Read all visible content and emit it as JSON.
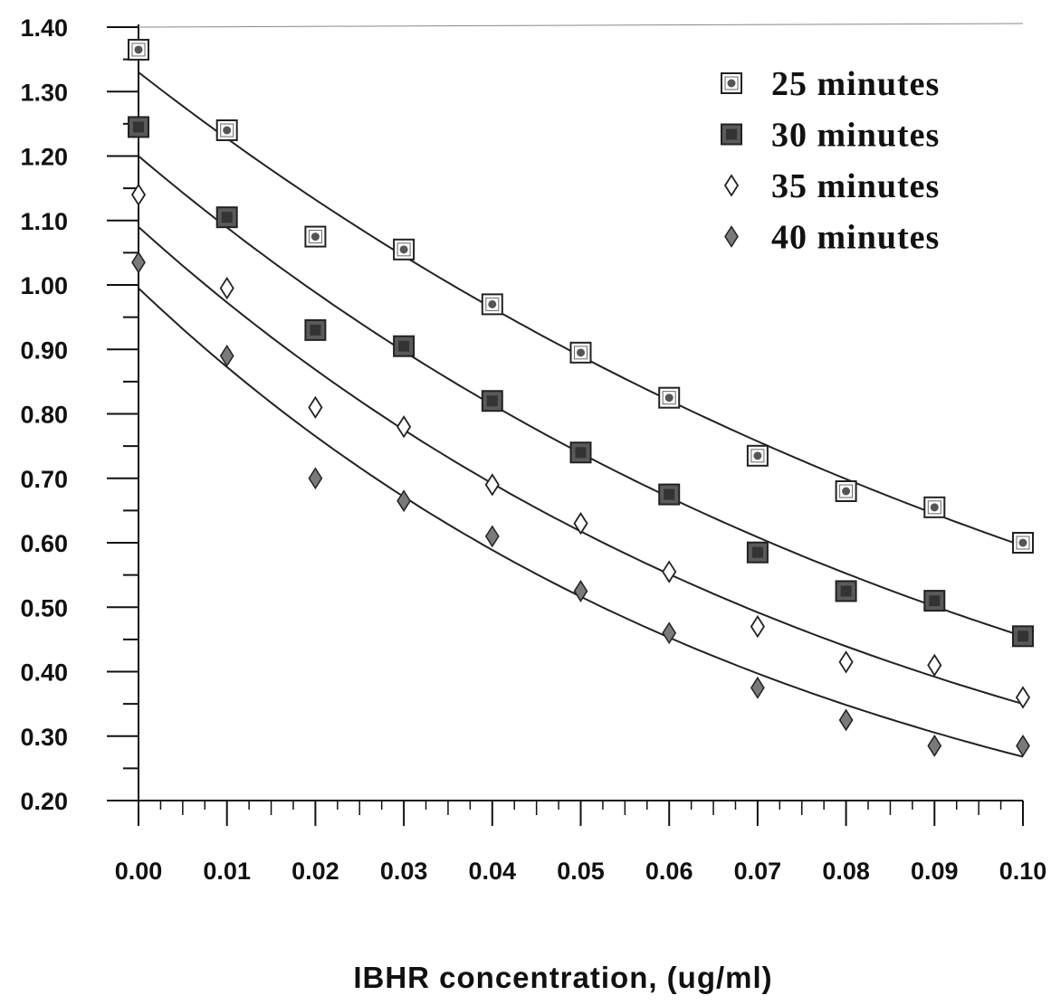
{
  "chart_data": {
    "type": "scatter",
    "title": "",
    "xlabel": "IBHR concentration, (ug/ml)",
    "ylabel": "",
    "xlim": [
      0,
      0.1
    ],
    "ylim": [
      0.2,
      1.4
    ],
    "grid": false,
    "legend_position": "top-right",
    "x_tick_labels": [
      "0.00",
      "0.01",
      "0.02",
      "0.03",
      "0.04",
      "0.05",
      "0.06",
      "0.07",
      "0.08",
      "0.09",
      "0.10"
    ],
    "y_tick_labels": [
      "0.20",
      "0.30",
      "0.40",
      "0.50",
      "0.60",
      "0.70",
      "0.80",
      "0.90",
      "1.00",
      "1.10",
      "1.20",
      "1.30",
      "1.40"
    ],
    "x": [
      0.0,
      0.01,
      0.02,
      0.03,
      0.04,
      0.05,
      0.06,
      0.07,
      0.08,
      0.09,
      0.1
    ],
    "series": [
      {
        "name": "25 minutes",
        "marker": "square-dot",
        "values": [
          1.365,
          1.24,
          1.075,
          1.055,
          0.97,
          0.895,
          0.825,
          0.735,
          0.68,
          0.655,
          0.6
        ],
        "fit": [
          1.33,
          0.595
        ]
      },
      {
        "name": "30 minutes",
        "marker": "filled-square",
        "values": [
          1.245,
          1.105,
          0.93,
          0.905,
          0.82,
          0.74,
          0.675,
          0.585,
          0.525,
          0.51,
          0.455
        ],
        "fit": [
          1.2,
          0.455
        ]
      },
      {
        "name": "35 minutes",
        "marker": "open-diamond",
        "values": [
          1.14,
          0.995,
          0.81,
          0.78,
          0.69,
          0.63,
          0.555,
          0.47,
          0.415,
          0.41,
          0.36
        ],
        "fit": [
          1.09,
          0.35
        ]
      },
      {
        "name": "40 minutes",
        "marker": "filled-diamond",
        "values": [
          1.035,
          0.89,
          0.7,
          0.665,
          0.61,
          0.525,
          0.46,
          0.375,
          0.325,
          0.285,
          0.285
        ],
        "fit": [
          0.995,
          0.268
        ]
      }
    ]
  }
}
